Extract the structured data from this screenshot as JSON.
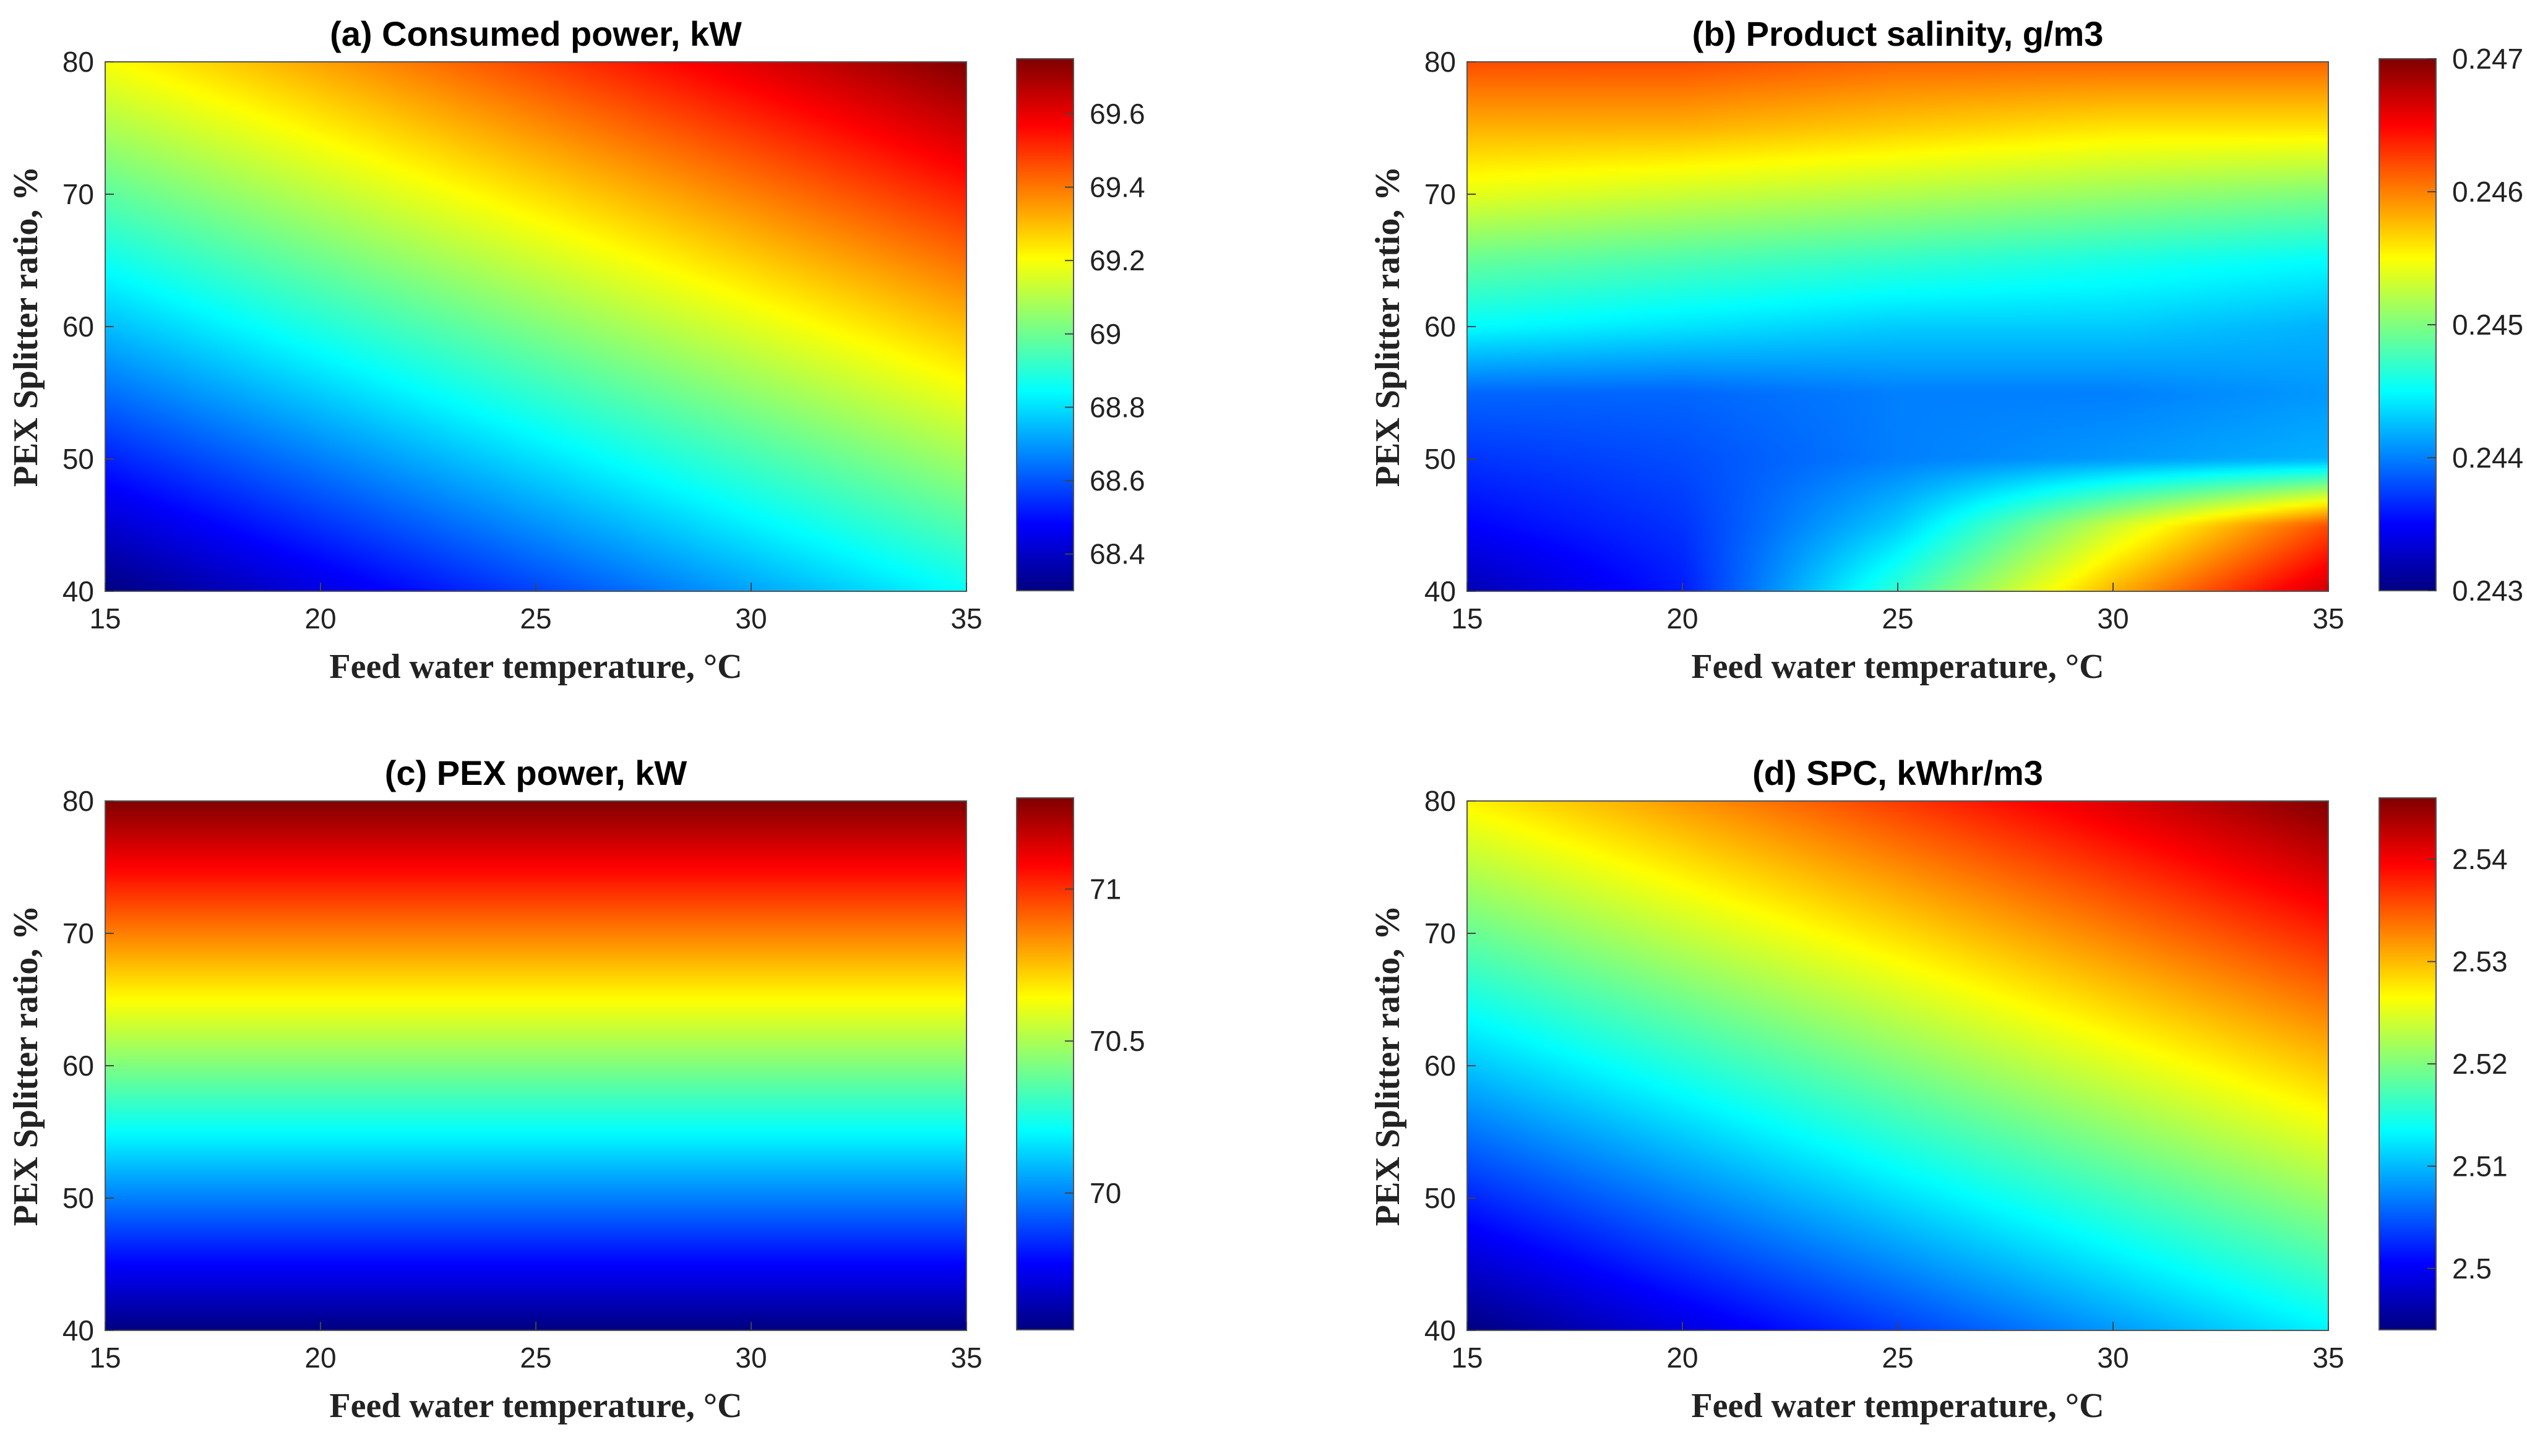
{
  "chart_data": [
    {
      "type": "heatmap",
      "title": "(a) Consumed power, kW",
      "xlabel": "Feed water temperature, °C",
      "ylabel": "PEX Splitter ratio, %",
      "xlim": [
        15,
        35
      ],
      "ylim": [
        40,
        80
      ],
      "xticks": [
        "15",
        "20",
        "25",
        "30",
        "35"
      ],
      "yticks": [
        "40",
        "50",
        "60",
        "70",
        "80"
      ],
      "colorbar": {
        "min": 68.3,
        "max": 69.75,
        "ticks": [
          "68.4",
          "68.6",
          "68.8",
          "69",
          "69.2",
          "69.4",
          "69.6"
        ]
      },
      "field": {
        "model": "linear",
        "corner_values": {
          "x15_y40": 68.3,
          "x35_y40": 68.85,
          "x15_y80": 69.2,
          "x35_y80": 69.75
        }
      }
    },
    {
      "type": "heatmap",
      "title": "(b) Product salinity, g/m3",
      "xlabel": "Feed water temperature, °C",
      "ylabel": "PEX Splitter ratio, %",
      "xlim": [
        15,
        35
      ],
      "ylim": [
        40,
        80
      ],
      "xticks": [
        "15",
        "20",
        "25",
        "30",
        "35"
      ],
      "yticks": [
        "40",
        "50",
        "60",
        "70",
        "80"
      ],
      "colorbar": {
        "min": 0.243,
        "max": 0.247,
        "ticks": [
          "0.243",
          "0.244",
          "0.245",
          "0.246",
          "0.247"
        ]
      },
      "field": {
        "model": "grid",
        "x": [
          15,
          20,
          25,
          30,
          35
        ],
        "y": [
          40,
          45,
          50,
          55,
          60,
          65,
          70,
          75,
          80
        ],
        "values": [
          [
            0.2432,
            0.2436,
            0.2447,
            0.2458,
            0.2467
          ],
          [
            0.2435,
            0.2437,
            0.2443,
            0.2453,
            0.2462
          ],
          [
            0.2437,
            0.2438,
            0.244,
            0.2441,
            0.2442
          ],
          [
            0.2439,
            0.2439,
            0.244,
            0.244,
            0.2441
          ],
          [
            0.2445,
            0.2444,
            0.2443,
            0.2443,
            0.2442
          ],
          [
            0.2449,
            0.2448,
            0.2447,
            0.2446,
            0.2445
          ],
          [
            0.2454,
            0.2453,
            0.2452,
            0.2451,
            0.245
          ],
          [
            0.2458,
            0.2458,
            0.2457,
            0.2456,
            0.2456
          ],
          [
            0.2462,
            0.2462,
            0.2461,
            0.2461,
            0.2461
          ]
        ]
      }
    },
    {
      "type": "heatmap",
      "title": "(c) PEX power, kW",
      "xlabel": "Feed water temperature, °C",
      "ylabel": "PEX Splitter ratio, %",
      "xlim": [
        15,
        35
      ],
      "ylim": [
        40,
        80
      ],
      "xticks": [
        "15",
        "20",
        "25",
        "30",
        "35"
      ],
      "yticks": [
        "40",
        "50",
        "60",
        "70",
        "80"
      ],
      "colorbar": {
        "min": 69.55,
        "max": 71.3,
        "ticks": [
          "70",
          "70.5",
          "71"
        ]
      },
      "field": {
        "model": "linear",
        "corner_values": {
          "x15_y40": 69.55,
          "x35_y40": 69.55,
          "x15_y80": 71.3,
          "x35_y80": 71.3
        }
      }
    },
    {
      "type": "heatmap",
      "title": "(d) SPC, kWhr/m3",
      "xlabel": "Feed water temperature, °C",
      "ylabel": "PEX Splitter ratio, %",
      "xlim": [
        15,
        35
      ],
      "ylim": [
        40,
        80
      ],
      "xticks": [
        "15",
        "20",
        "25",
        "30",
        "35"
      ],
      "yticks": [
        "40",
        "50",
        "60",
        "70",
        "80"
      ],
      "colorbar": {
        "min": 2.494,
        "max": 2.546,
        "ticks": [
          "2.5",
          "2.51",
          "2.52",
          "2.53",
          "2.54"
        ]
      },
      "field": {
        "model": "linear",
        "corner_values": {
          "x15_y40": 2.494,
          "x35_y40": 2.513,
          "x15_y80": 2.527,
          "x35_y80": 2.546
        }
      }
    }
  ]
}
